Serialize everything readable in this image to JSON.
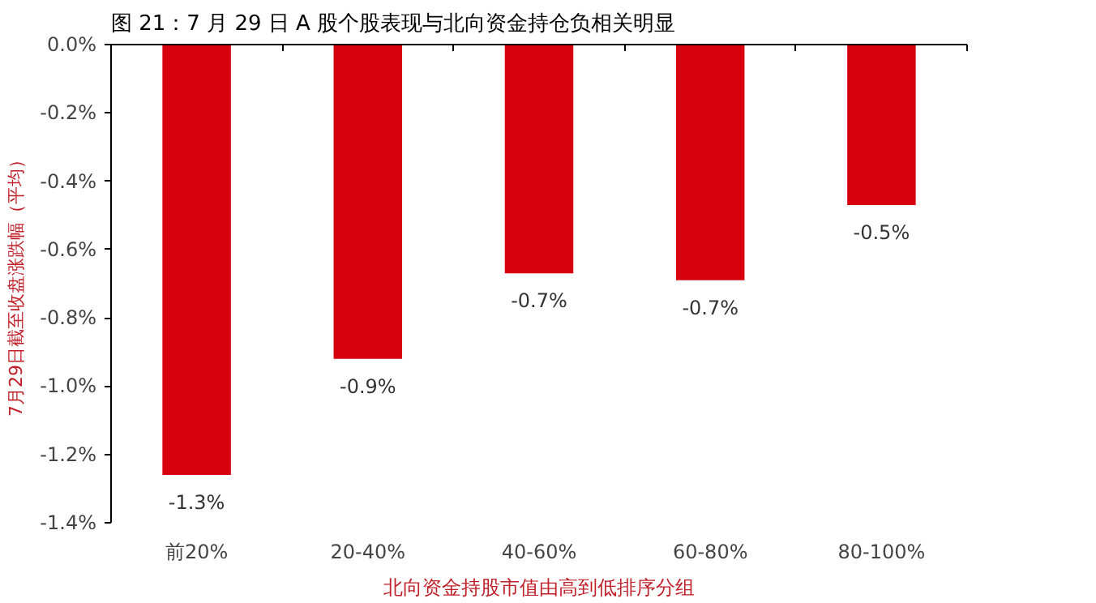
{
  "chart_data": {
    "type": "bar",
    "title": "图 21：7 月 29 日 A 股个股表现与北向资金持仓负相关明显",
    "xlabel": "北向资金持股市值由高到低排序分组",
    "ylabel": "7月29日截至收盘涨跌幅（平均）",
    "categories": [
      "前20%",
      "20-40%",
      "40-60%",
      "60-80%",
      "80-100%"
    ],
    "values": [
      -1.26,
      -0.92,
      -0.67,
      -0.69,
      -0.47
    ],
    "value_labels": [
      "-1.3%",
      "-0.9%",
      "-0.7%",
      "-0.7%",
      "-0.5%"
    ],
    "color": "#d7000f",
    "ylim": [
      -1.4,
      0
    ],
    "yticks": [
      {
        "value": 0,
        "label": "0.0%"
      },
      {
        "value": -0.2,
        "label": "-0.2%"
      },
      {
        "value": -0.4,
        "label": "-0.4%"
      },
      {
        "value": -0.6,
        "label": "-0.6%"
      },
      {
        "value": -0.8,
        "label": "-0.8%"
      },
      {
        "value": -1.0,
        "label": "-1.0%"
      },
      {
        "value": -1.2,
        "label": "-1.2%"
      },
      {
        "value": -1.4,
        "label": "-1.4%"
      }
    ],
    "grid": false
  }
}
